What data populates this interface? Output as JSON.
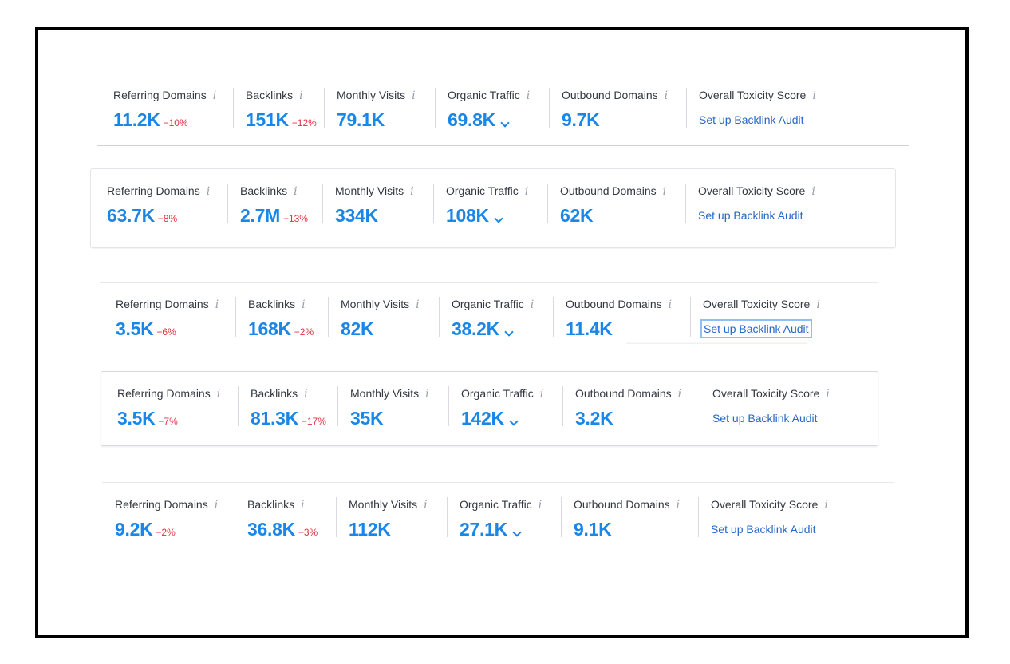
{
  "labels": {
    "referring_domains": "Referring Domains",
    "backlinks": "Backlinks",
    "monthly_visits": "Monthly Visits",
    "organic_traffic": "Organic Traffic",
    "outbound_domains": "Outbound Domains",
    "toxicity": "Overall Toxicity Score",
    "audit_link": "Set up Backlink Audit",
    "info_glyph": "i"
  },
  "rows": [
    {
      "referring_domains": "11.2K",
      "referring_delta": "−10%",
      "backlinks": "151K",
      "backlinks_delta": "−12%",
      "monthly_visits": "79.1K",
      "organic_traffic": "69.8K",
      "outbound_domains": "9.7K"
    },
    {
      "referring_domains": "63.7K",
      "referring_delta": "−8%",
      "backlinks": "2.7M",
      "backlinks_delta": "−13%",
      "monthly_visits": "334K",
      "organic_traffic": "108K",
      "outbound_domains": "62K"
    },
    {
      "referring_domains": "3.5K",
      "referring_delta": "−6%",
      "backlinks": "168K",
      "backlinks_delta": "−2%",
      "monthly_visits": "82K",
      "organic_traffic": "38.2K",
      "outbound_domains": "11.4K"
    },
    {
      "referring_domains": "3.5K",
      "referring_delta": "−7%",
      "backlinks": "81.3K",
      "backlinks_delta": "−17%",
      "monthly_visits": "35K",
      "organic_traffic": "142K",
      "outbound_domains": "3.2K"
    },
    {
      "referring_domains": "9.2K",
      "referring_delta": "−2%",
      "backlinks": "36.8K",
      "backlinks_delta": "−3%",
      "monthly_visits": "112K",
      "organic_traffic": "27.1K",
      "outbound_domains": "9.1K"
    }
  ],
  "colors": {
    "value_blue": "#1a86e8",
    "delta_red": "#e0323f",
    "link_blue": "#2467c9",
    "label_gray": "#333842",
    "info_gray": "#9aa0aa"
  },
  "icons": {
    "info": "info-icon",
    "dropdown": "chevron-down-icon"
  }
}
